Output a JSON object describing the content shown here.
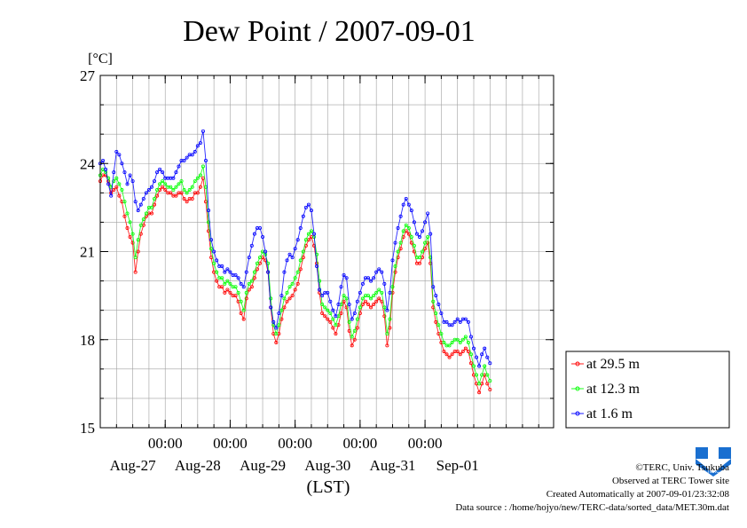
{
  "chart_data": {
    "type": "line",
    "title": "Dew Point / 2007-09-01",
    "ylabel": "[°C]",
    "xlabel": "(LST)",
    "ylim": [
      15,
      27
    ],
    "yticks": [
      15,
      18,
      21,
      24,
      27
    ],
    "xlim": [
      "2007-08-26 00:00",
      "2007-09-01 23:30"
    ],
    "x_tick_labels": [
      {
        "time": "2007-08-27 00:00",
        "label": "00:00",
        "date": "Aug-27"
      },
      {
        "time": "2007-08-28 00:00",
        "label": "00:00",
        "date": "Aug-28"
      },
      {
        "time": "2007-08-29 00:00",
        "label": "00:00",
        "date": "Aug-29"
      },
      {
        "time": "2007-08-30 00:00",
        "label": "00:00",
        "date": "Aug-30"
      },
      {
        "time": "2007-08-31 00:00",
        "label": "00:00",
        "date": "Aug-31"
      },
      {
        "time": "2007-09-01 00:00",
        "label": "",
        "date": "Sep-01"
      }
    ],
    "grid": true,
    "legend_position": "lower-right, outside plot",
    "time_resolution_hours": 1,
    "series": [
      {
        "name": "at 29.5 m",
        "color": "#ff0000",
        "start": "2007-08-26 00:00",
        "values": [
          23.4,
          23.6,
          23.6,
          23.4,
          23.0,
          23.1,
          23.2,
          22.9,
          22.7,
          22.2,
          21.8,
          21.5,
          21.3,
          20.3,
          21.0,
          21.6,
          21.9,
          22.2,
          22.3,
          22.3,
          22.6,
          22.9,
          23.1,
          23.2,
          23.1,
          23.0,
          23.0,
          22.9,
          22.9,
          23.0,
          23.0,
          22.8,
          22.7,
          22.8,
          22.8,
          23.0,
          23.0,
          23.2,
          23.5,
          22.7,
          21.7,
          20.8,
          20.3,
          20.0,
          19.8,
          19.8,
          19.6,
          19.7,
          19.6,
          19.5,
          19.5,
          19.3,
          18.9,
          18.7,
          19.4,
          19.7,
          19.8,
          20.1,
          20.4,
          20.6,
          20.8,
          20.7,
          20.3,
          19.1,
          18.2,
          17.9,
          18.2,
          18.7,
          19.1,
          19.3,
          19.4,
          19.5,
          19.7,
          19.9,
          20.4,
          20.8,
          21.2,
          21.4,
          21.5,
          21.2,
          20.6,
          19.6,
          18.9,
          18.8,
          18.7,
          18.6,
          18.4,
          18.2,
          18.5,
          18.9,
          19.3,
          19.1,
          18.3,
          17.8,
          18.0,
          18.4,
          18.9,
          19.2,
          19.3,
          19.2,
          19.1,
          19.2,
          19.3,
          19.4,
          19.3,
          18.8,
          17.8,
          18.4,
          19.6,
          20.3,
          20.8,
          21.1,
          21.5,
          21.7,
          21.6,
          21.3,
          21.0,
          20.6,
          20.6,
          20.8,
          21.1,
          21.3,
          20.6,
          19.1,
          18.6,
          18.2,
          17.9,
          17.6,
          17.5,
          17.4,
          17.5,
          17.6,
          17.6,
          17.5,
          17.6,
          17.7,
          17.6,
          17.2,
          16.8,
          16.5,
          16.2,
          16.5,
          16.8,
          16.5,
          16.3
        ]
      },
      {
        "name": "at 12.3 m",
        "color": "#00ff00",
        "start": "2007-08-26 00:00",
        "values": [
          23.6,
          23.8,
          23.7,
          23.5,
          23.2,
          23.4,
          23.5,
          23.3,
          23.1,
          22.7,
          22.3,
          22.0,
          21.6,
          20.8,
          21.4,
          21.9,
          22.1,
          22.3,
          22.5,
          22.5,
          22.8,
          23.1,
          23.3,
          23.4,
          23.3,
          23.2,
          23.2,
          23.1,
          23.2,
          23.3,
          23.4,
          23.1,
          23.0,
          23.1,
          23.2,
          23.4,
          23.5,
          23.6,
          23.9,
          23.2,
          22.0,
          21.1,
          20.6,
          20.3,
          20.1,
          20.1,
          19.9,
          20.0,
          19.9,
          19.8,
          19.8,
          19.6,
          19.3,
          19.0,
          19.6,
          19.9,
          20.0,
          20.3,
          20.6,
          20.8,
          21.0,
          20.9,
          20.6,
          19.4,
          18.5,
          18.2,
          18.5,
          19.0,
          19.4,
          19.6,
          19.8,
          19.9,
          20.1,
          20.3,
          20.7,
          21.0,
          21.4,
          21.6,
          21.7,
          21.5,
          20.9,
          20.0,
          19.2,
          19.1,
          19.0,
          18.9,
          18.7,
          18.5,
          18.8,
          19.2,
          19.5,
          19.4,
          18.6,
          18.1,
          18.3,
          18.7,
          19.1,
          19.4,
          19.5,
          19.5,
          19.4,
          19.5,
          19.6,
          19.7,
          19.6,
          19.1,
          18.2,
          18.7,
          19.8,
          20.5,
          21.0,
          21.3,
          21.7,
          21.9,
          21.8,
          21.5,
          21.2,
          20.8,
          20.8,
          21.0,
          21.3,
          21.5,
          20.8,
          19.3,
          18.9,
          18.5,
          18.2,
          17.9,
          17.8,
          17.8,
          17.9,
          18.0,
          18.0,
          17.9,
          18.0,
          18.1,
          17.9,
          17.5,
          17.1,
          16.8,
          16.5,
          16.8,
          17.1,
          16.8,
          16.6
        ]
      },
      {
        "name": "at 1.6 m",
        "color": "#0000ff",
        "start": "2007-08-26 00:00",
        "values": [
          24.0,
          24.1,
          23.8,
          23.3,
          22.9,
          23.7,
          24.4,
          24.3,
          24.0,
          23.7,
          23.3,
          23.6,
          23.4,
          22.7,
          22.4,
          22.6,
          22.8,
          23.0,
          23.1,
          23.2,
          23.4,
          23.7,
          23.8,
          23.7,
          23.5,
          23.5,
          23.5,
          23.5,
          23.7,
          23.9,
          24.1,
          24.1,
          24.2,
          24.3,
          24.3,
          24.4,
          24.6,
          24.7,
          25.1,
          24.1,
          22.4,
          21.4,
          21.0,
          20.7,
          20.5,
          20.5,
          20.3,
          20.4,
          20.3,
          20.2,
          20.2,
          20.1,
          19.9,
          19.8,
          20.3,
          20.8,
          21.2,
          21.6,
          21.8,
          21.8,
          21.5,
          21.0,
          20.3,
          19.1,
          18.6,
          18.4,
          18.9,
          19.5,
          20.3,
          20.7,
          20.9,
          20.8,
          21.1,
          21.4,
          21.8,
          22.2,
          22.5,
          22.6,
          22.4,
          21.6,
          20.5,
          19.7,
          19.5,
          19.6,
          19.6,
          19.3,
          19.0,
          18.8,
          19.2,
          19.8,
          20.2,
          20.1,
          19.2,
          18.7,
          18.9,
          19.3,
          19.6,
          19.9,
          20.1,
          20.1,
          20.0,
          20.1,
          20.3,
          20.4,
          20.3,
          19.9,
          19.0,
          19.6,
          20.7,
          21.3,
          21.8,
          22.2,
          22.6,
          22.8,
          22.6,
          22.4,
          22.0,
          21.6,
          21.5,
          21.7,
          22.0,
          22.3,
          21.6,
          19.8,
          19.5,
          19.2,
          18.9,
          18.6,
          18.6,
          18.5,
          18.5,
          18.6,
          18.7,
          18.6,
          18.7,
          18.7,
          18.6,
          18.1,
          17.7,
          17.4,
          17.1,
          17.5,
          17.7,
          17.4,
          17.2
        ]
      }
    ]
  },
  "credits": {
    "copyright": "©TERC, Univ. Tsukuba",
    "observed": "Observed at TERC Tower site",
    "created": "Created Automatically at 2007-09-01/23:32:08",
    "source": "Data source : /home/hojyo/new/TERC-data/sorted_data/MET.30m.dat"
  },
  "logo": {
    "text": "TERC",
    "color": "#1a6fd0"
  }
}
